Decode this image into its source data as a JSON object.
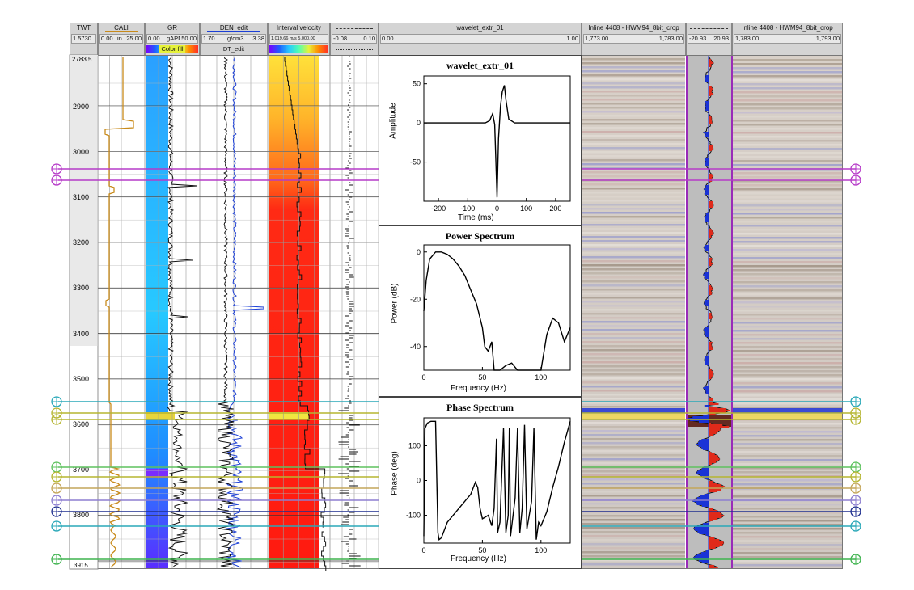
{
  "header": {
    "twt": {
      "title": "TWT",
      "scale": "1.5730"
    },
    "cali": {
      "title": "CALI",
      "min": "0.00",
      "unit": "in",
      "max": "25.00"
    },
    "gr": {
      "title": "GR",
      "min": "0.00",
      "unit": "gAPI",
      "max": "150.00",
      "fill_label": "Color fill"
    },
    "den": {
      "title": "DEN_edit",
      "min": "1.70",
      "unit": "g/cm3",
      "max": "3.38",
      "sub_title": "DT_edit"
    },
    "ivel": {
      "title": "Interval velocity",
      "scale": "1,019.66 m/s 5,000.00"
    },
    "refl": {
      "min": "-0.08",
      "max": "0.10"
    },
    "wavelet": {
      "title": "wavelet_extr_01",
      "min": "0.00",
      "max": "1.00"
    },
    "seis_left": {
      "title": "Inline 4408 - HWM94_8bit_crop",
      "min": "1,773.00",
      "max": "1,783.00"
    },
    "synth": {
      "min": "-20.93",
      "max": "20.93"
    },
    "seis_right": {
      "title": "Inline 4408 - HWM94_8bit_crop",
      "min": "1,783.00",
      "max": "1,793.00"
    }
  },
  "depth_axis": {
    "top": "2783.5",
    "bottom": "3915",
    "ticks": [
      "2900",
      "3000",
      "3100",
      "3200",
      "3300",
      "3400",
      "3500",
      "3600",
      "3700",
      "3800"
    ]
  },
  "colors": {
    "header_bg": "#d4d4d4",
    "cali": "#c88a1a",
    "den": "#1c3fd6",
    "ivel": "#ff2a14",
    "horizon_magenta": "#b63bc8",
    "horizon_teal": "#2aa8b8",
    "horizon_olive": "#b5b531",
    "horizon_green": "#5ec25e",
    "horizon_navy": "#1f2f8f"
  },
  "chart_data": [
    {
      "type": "line",
      "title": "wavelet_extr_01",
      "xlabel": "Time (ms)",
      "ylabel": "Amplitude",
      "xlim": [
        -250,
        250
      ],
      "ylim": [
        -100,
        60
      ],
      "xticks": [
        "-200",
        "-100",
        "0",
        "100",
        "200"
      ],
      "yticks": [
        "50",
        "0",
        "-50"
      ],
      "x": [
        -250,
        -100,
        -40,
        -25,
        -15,
        -8,
        -3,
        0,
        5,
        12,
        18,
        25,
        30,
        40,
        60,
        100,
        250
      ],
      "values": [
        0,
        0,
        0,
        3,
        12,
        -2,
        -60,
        -95,
        -20,
        22,
        40,
        48,
        30,
        5,
        0,
        0,
        0
      ]
    },
    {
      "type": "line",
      "title": "Power Spectrum",
      "xlabel": "Frequency (Hz)",
      "ylabel": "Power (dB)",
      "xlim": [
        0,
        125
      ],
      "ylim": [
        -50,
        3
      ],
      "xticks": [
        "0",
        "50",
        "100"
      ],
      "yticks": [
        "0",
        "-20",
        "-40"
      ],
      "x": [
        0,
        2,
        5,
        10,
        15,
        20,
        25,
        30,
        35,
        40,
        45,
        50,
        52,
        55,
        58,
        60,
        65,
        70,
        75,
        80,
        90,
        100,
        105,
        110,
        115,
        120,
        125
      ],
      "values": [
        -25,
        -12,
        -3,
        0,
        0,
        -1,
        -3,
        -6,
        -10,
        -16,
        -22,
        -32,
        -40,
        -42,
        -38,
        -50,
        -50,
        -48,
        -47,
        -50,
        -50,
        -50,
        -35,
        -28,
        -30,
        -38,
        -32
      ]
    },
    {
      "type": "line",
      "title": "Phase Spectrum",
      "xlabel": "Frequency (Hz)",
      "ylabel": "Phase (deg)",
      "xlim": [
        0,
        125
      ],
      "ylim": [
        -180,
        180
      ],
      "xticks": [
        "0",
        "50",
        "100"
      ],
      "yticks": [
        "100",
        "0",
        "-100"
      ],
      "x": [
        0,
        1,
        3,
        6,
        10,
        12,
        13,
        15,
        20,
        30,
        40,
        44,
        46,
        48,
        50,
        55,
        58,
        60,
        62,
        63,
        65,
        68,
        70,
        72,
        73,
        74,
        78,
        80,
        82,
        84,
        86,
        88,
        92,
        94,
        96,
        98,
        100,
        105,
        110,
        115,
        120,
        125
      ],
      "values": [
        -160,
        150,
        165,
        170,
        170,
        -150,
        -170,
        -165,
        -120,
        -80,
        -40,
        -5,
        -20,
        -80,
        -110,
        -100,
        -130,
        -80,
        120,
        -150,
        -120,
        150,
        -150,
        -100,
        150,
        -160,
        -50,
        150,
        -150,
        -80,
        160,
        -140,
        -60,
        150,
        -170,
        -120,
        -130,
        -90,
        -20,
        40,
        110,
        170
      ]
    }
  ]
}
